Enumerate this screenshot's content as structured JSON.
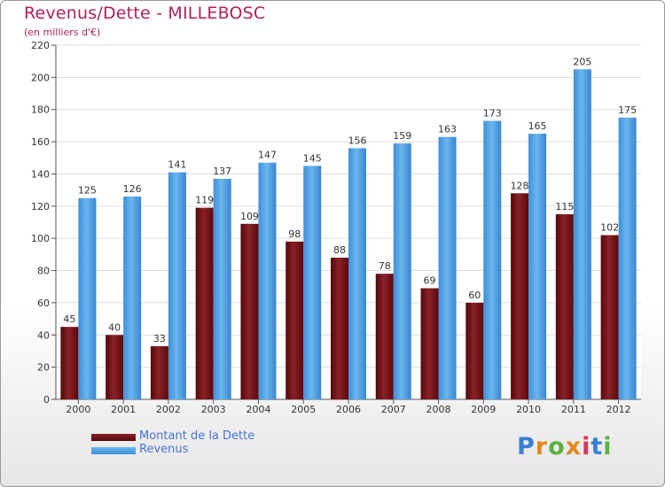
{
  "chart_data": {
    "type": "bar",
    "title": "Revenus/Dette - MILLEBOSC",
    "subtitle": "(en milliers d'€)",
    "categories": [
      "2000",
      "2001",
      "2002",
      "2003",
      "2004",
      "2005",
      "2006",
      "2007",
      "2008",
      "2009",
      "2010",
      "2011",
      "2012"
    ],
    "series": [
      {
        "name": "Montant de la Dette",
        "color": "#6b1015",
        "values": [
          45,
          40,
          33,
          119,
          109,
          98,
          88,
          78,
          69,
          60,
          128,
          115,
          102
        ]
      },
      {
        "name": "Revenus",
        "color": "#4a9de0",
        "values": [
          125,
          126,
          141,
          137,
          147,
          145,
          156,
          159,
          163,
          173,
          165,
          205,
          175
        ]
      }
    ],
    "ylim": [
      0,
      220
    ],
    "yticks": [
      0,
      20,
      40,
      60,
      80,
      100,
      120,
      140,
      160,
      180,
      200,
      220
    ],
    "grid": true,
    "xlabel": "",
    "ylabel": "",
    "legend": "bottom-left"
  },
  "logo": {
    "letters": [
      "P",
      "r",
      "o",
      "x",
      "i",
      "t",
      "i"
    ],
    "colors": [
      "#3a7fd5",
      "#e2881e",
      "#5bb23f",
      "#e2881e",
      "#d9345a",
      "#3a7fd5",
      "#5bb23f"
    ]
  }
}
